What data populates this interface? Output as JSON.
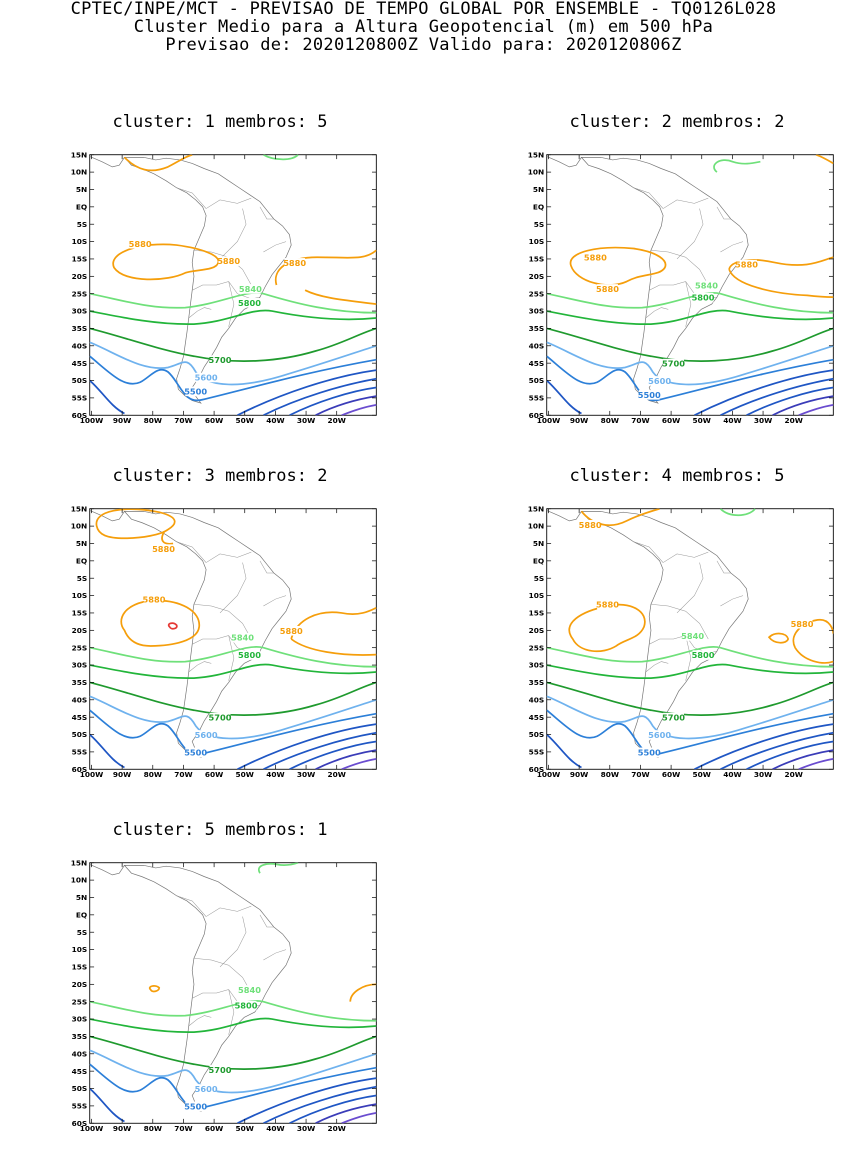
{
  "header": {
    "line1": "CPTEC/INPE/MCT - PREVISAO DE TEMPO GLOBAL POR ENSEMBLE - TQ0126L028",
    "line2": "Cluster Medio para a Altura Geopotencial (m) em 500 hPa",
    "line3": "Previsao de: 2020120800Z   Valido para: 2020120806Z"
  },
  "map": {
    "lat_labels": [
      "15N",
      "10N",
      "5N",
      "EQ",
      "5S",
      "10S",
      "15S",
      "20S",
      "25S",
      "30S",
      "35S",
      "40S",
      "45S",
      "50S",
      "55S",
      "60S"
    ],
    "lon_labels": [
      "100W",
      "90W",
      "80W",
      "70W",
      "60W",
      "50W",
      "40W",
      "30W",
      "20W"
    ],
    "colors": {
      "5880": "#f59e0b",
      "5840": "#6fe07a",
      "5800": "#22b53a",
      "5700": "#1f9a2e",
      "5600": "#6fb2ee",
      "5500": "#2c7fd8",
      "deep1": "#1f56c4",
      "deep2": "#3a3cb8",
      "deep3": "#6a4ccf",
      "red": "#e53935"
    }
  },
  "clusters": [
    {
      "label": "cluster: 1   membros: 5",
      "contour_labels": [
        "5880",
        "5880",
        "5880",
        "5840",
        "5800",
        "5700",
        "5600",
        "5500"
      ]
    },
    {
      "label": "cluster: 2   membros: 2",
      "contour_labels": [
        "5880",
        "5880",
        "5880",
        "5840",
        "5800",
        "5700",
        "5600",
        "5500"
      ]
    },
    {
      "label": "cluster: 3   membros: 2",
      "contour_labels": [
        "5880",
        "5880",
        "5880",
        "5840",
        "5800",
        "5700",
        "5600",
        "5500"
      ]
    },
    {
      "label": "cluster: 4   membros: 5",
      "contour_labels": [
        "5880",
        "5880",
        "5880",
        "5840",
        "5800",
        "5700",
        "5600",
        "5500"
      ]
    },
    {
      "label": "cluster: 5   membros: 1",
      "contour_labels": [
        "5840",
        "5800",
        "5700",
        "5600",
        "5500"
      ]
    }
  ]
}
